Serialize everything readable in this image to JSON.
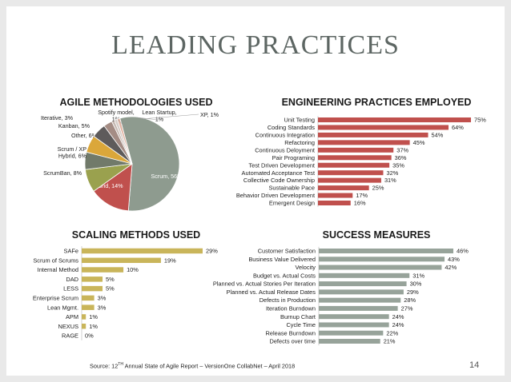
{
  "slide": {
    "title": "LEADING PRACTICES",
    "page_number": "14",
    "source": {
      "prefix": "Source: 12",
      "sup": "TH",
      "rest": " Annual State of Agile Report – VersionOne CollabNet – April 2018"
    }
  },
  "chart_data": [
    {
      "type": "pie",
      "title": "AGILE METHODOLOGIES USED",
      "labels": [
        "Scrum",
        "Hybrid",
        "ScrumBan",
        "Scrum / XP Hybrid",
        "Other",
        "Kanban",
        "Iterative",
        "Spotify model",
        "Lean Startup",
        "XP"
      ],
      "values": [
        56,
        14,
        8,
        6,
        6,
        5,
        3,
        1,
        1,
        1
      ],
      "display_labels": [
        "Scrum, 56%",
        "Hybrid, 14%",
        "ScrumBan, 8%",
        "Scrum / XP|Hybrid, 6%",
        "Other, 6%",
        "Kanban, 5%",
        "Iterative, 3%",
        "Spotify model,|1%",
        "Lean Startup,|1%",
        "XP, 1%"
      ],
      "colors": [
        "#8e9b8f",
        "#c0504d",
        "#9aa14e",
        "#717a6a",
        "#dba73a",
        "#5e5b5b",
        "#a48c84",
        "#c7b9b2",
        "#d4cbc6",
        "#e1b3a2"
      ]
    },
    {
      "type": "bar",
      "orientation": "horizontal",
      "title": "ENGINEERING PRACTICES EMPLOYED",
      "categories": [
        "Unit Testing",
        "Coding Standards",
        "Continuous Integration",
        "Refactoring",
        "Continuous Deloyment",
        "Pair Programing",
        "Test Driven Development",
        "Automated Acceptance Test",
        "Collective Code Ownership",
        "Sustainable Pace",
        "Behavior Driven Development",
        "Emergent Design"
      ],
      "values": [
        75,
        64,
        54,
        45,
        37,
        36,
        35,
        32,
        31,
        25,
        17,
        16
      ],
      "value_suffix": "%",
      "color": "#c0504d",
      "xlim": [
        0,
        75
      ]
    },
    {
      "type": "bar",
      "orientation": "horizontal",
      "title": "SCALING METHODS USED",
      "categories": [
        "SAFe",
        "Scrum of Scrums",
        "Internal Method",
        "DAD",
        "LESS",
        "Enterprise Scrum",
        "Lean Mgmt.",
        "APM",
        "NEXUS",
        "RAGE"
      ],
      "values": [
        29,
        19,
        10,
        5,
        5,
        3,
        3,
        1,
        1,
        0
      ],
      "value_suffix": "%",
      "color": "#c9b55a",
      "xlim": [
        0,
        29
      ]
    },
    {
      "type": "bar",
      "orientation": "horizontal",
      "title": "SUCCESS MEASURES",
      "categories": [
        "Customer Satisfaction",
        "Business Value Delivered",
        "Velocity",
        "Budget vs. Actual Costs",
        "Planned vs. Actual Stories Per Iteration",
        "Planned vs. Actual Release Dates",
        "Defects in Production",
        "Iteration Burndown",
        "Burnup Chart",
        "Cycle Time",
        "Release Burndown",
        "Defects over time"
      ],
      "values": [
        46,
        43,
        42,
        31,
        30,
        29,
        28,
        27,
        24,
        24,
        22,
        21
      ],
      "value_suffix": "%",
      "color": "#97a39a",
      "xlim": [
        0,
        46
      ]
    }
  ]
}
